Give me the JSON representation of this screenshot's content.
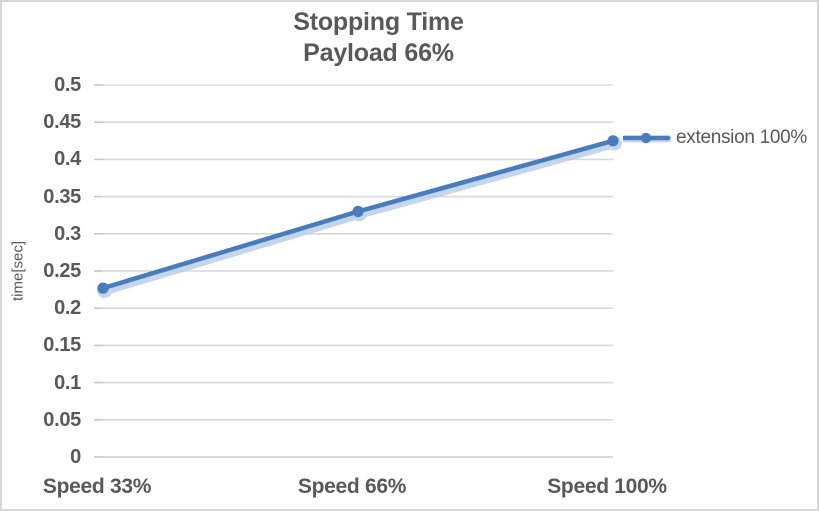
{
  "chart_data": {
    "type": "line",
    "title": "Stopping Time",
    "subtitle": "Payload 66%",
    "ylabel": "time[sec]",
    "xlabel": "",
    "categories": [
      "Speed 33%",
      "Speed 66%",
      "Speed 100%"
    ],
    "series": [
      {
        "name": "extension 100%",
        "values": [
          0.227,
          0.33,
          0.425
        ]
      }
    ],
    "ylim": [
      0,
      0.5
    ],
    "ytick_step": 0.05,
    "ytick_labels": [
      "0",
      "0.05",
      "0.1",
      "0.15",
      "0.2",
      "0.25",
      "0.3",
      "0.35",
      "0.4",
      "0.45",
      "0.5"
    ],
    "grid": true,
    "legend_position": "right",
    "marker": "circle",
    "line_style": "solid-with-soft-halo-shadow"
  },
  "colors": {
    "accent": "#4a7cbd",
    "accent_halo": "#bccfe9",
    "gridline": "#d9d9d9",
    "axis_line": "#c8c8c8",
    "text": "#595959",
    "border": "#d6d6d6",
    "background": "#ffffff"
  }
}
